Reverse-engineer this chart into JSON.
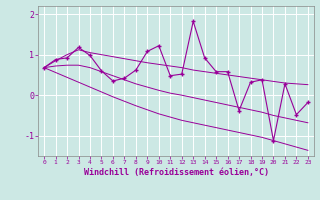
{
  "xlabel": "Windchill (Refroidissement éolien,°C)",
  "background_color": "#cce8e4",
  "line_color": "#990099",
  "x_data": [
    0,
    1,
    2,
    3,
    4,
    5,
    6,
    7,
    8,
    9,
    10,
    11,
    12,
    13,
    14,
    15,
    16,
    17,
    18,
    19,
    20,
    21,
    22,
    23
  ],
  "y_main": [
    0.68,
    0.88,
    0.92,
    1.18,
    0.98,
    0.6,
    0.35,
    0.42,
    0.62,
    1.08,
    1.22,
    0.48,
    0.52,
    1.82,
    0.92,
    0.58,
    0.58,
    -0.38,
    0.32,
    0.38,
    -1.12,
    0.28,
    -0.48,
    -0.18
  ],
  "y_trend_upper": [
    0.68,
    0.85,
    1.0,
    1.12,
    1.05,
    1.0,
    0.95,
    0.9,
    0.85,
    0.8,
    0.76,
    0.72,
    0.68,
    0.62,
    0.58,
    0.54,
    0.5,
    0.46,
    0.42,
    0.38,
    0.34,
    0.3,
    0.28,
    0.26
  ],
  "y_trend_mid": [
    0.68,
    0.72,
    0.74,
    0.74,
    0.68,
    0.58,
    0.48,
    0.38,
    0.28,
    0.2,
    0.12,
    0.05,
    0.0,
    -0.06,
    -0.12,
    -0.18,
    -0.24,
    -0.3,
    -0.36,
    -0.42,
    -0.5,
    -0.56,
    -0.62,
    -0.68
  ],
  "y_trend_lower": [
    0.68,
    0.56,
    0.44,
    0.32,
    0.2,
    0.08,
    -0.04,
    -0.15,
    -0.26,
    -0.36,
    -0.46,
    -0.54,
    -0.62,
    -0.68,
    -0.74,
    -0.8,
    -0.86,
    -0.92,
    -0.98,
    -1.04,
    -1.12,
    -1.2,
    -1.28,
    -1.36
  ],
  "ylim": [
    -1.5,
    2.2
  ],
  "xlim": [
    -0.5,
    23.5
  ],
  "yticks": [
    -1,
    0,
    1,
    2
  ],
  "xticks": [
    0,
    1,
    2,
    3,
    4,
    5,
    6,
    7,
    8,
    9,
    10,
    11,
    12,
    13,
    14,
    15,
    16,
    17,
    18,
    19,
    20,
    21,
    22,
    23
  ],
  "grid_color": "#aad4ce",
  "spine_color": "#888888",
  "xlabel_color": "#990099",
  "tick_color": "#990099"
}
